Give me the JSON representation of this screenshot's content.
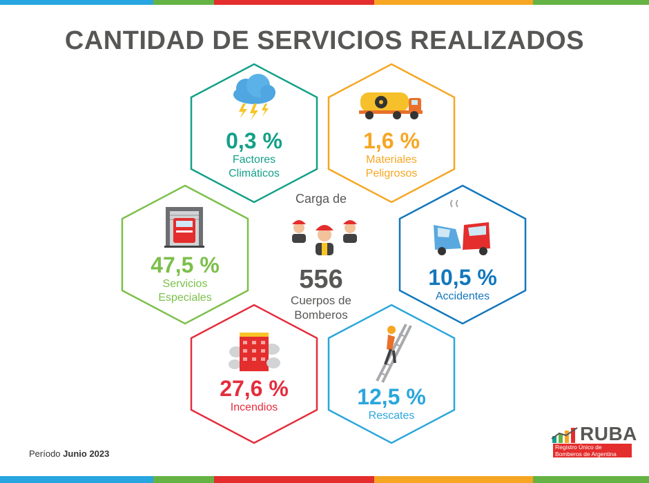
{
  "title": "CANTIDAD DE SERVICIOS REALIZADOS",
  "center": {
    "pre_label": "Carga de",
    "count": "556",
    "post_label_1": "Cuerpos de",
    "post_label_2": "Bomberos"
  },
  "period": {
    "label": "Período",
    "value": "Junio 2023"
  },
  "logo": {
    "name": "RUBA",
    "line1": "Registro Único de",
    "line2": "Bomberos de Argentina"
  },
  "colors": {
    "stripe": [
      "#27a6e1",
      "#65b245",
      "#e42d2d",
      "#f6a623",
      "#65b245"
    ],
    "climaticos": "#13a088",
    "peligrosos": "#f6a623",
    "accidentes": "#1277bd",
    "rescates": "#2aa6dc",
    "incendios": "#e42d3c",
    "especiales": "#7cbf4a"
  },
  "chart_data": {
    "type": "hex-infographic",
    "title": "CANTIDAD DE SERVICIOS REALIZADOS",
    "unit": "%",
    "categories": [
      {
        "label_1": "Factores",
        "label_2": "Climáticos",
        "value": 0.3,
        "display": "0,3 %",
        "icon": "storm-cloud-icon"
      },
      {
        "label_1": "Materiales",
        "label_2": "Peligrosos",
        "value": 1.6,
        "display": "1,6 %",
        "icon": "hazmat-truck-icon"
      },
      {
        "label_1": "Accidentes",
        "label_2": "",
        "value": 10.5,
        "display": "10,5 %",
        "icon": "car-crash-icon"
      },
      {
        "label_1": "Rescates",
        "label_2": "",
        "value": 12.5,
        "display": "12,5 %",
        "icon": "ladder-rescue-icon"
      },
      {
        "label_1": "Incendios",
        "label_2": "",
        "value": 27.6,
        "display": "27,6 %",
        "icon": "burning-building-icon"
      },
      {
        "label_1": "Servicios",
        "label_2": "Especiales",
        "value": 47.5,
        "display": "47,5 %",
        "icon": "fire-station-icon"
      }
    ]
  }
}
